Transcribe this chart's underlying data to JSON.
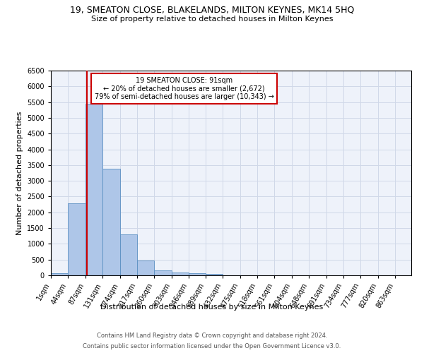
{
  "title_line1": "19, SMEATON CLOSE, BLAKELANDS, MILTON KEYNES, MK14 5HQ",
  "title_line2": "Size of property relative to detached houses in Milton Keynes",
  "xlabel": "Distribution of detached houses by size in Milton Keynes",
  "ylabel": "Number of detached properties",
  "footer_line1": "Contains HM Land Registry data © Crown copyright and database right 2024.",
  "footer_line2": "Contains public sector information licensed under the Open Government Licence v3.0.",
  "annotation_title": "19 SMEATON CLOSE: 91sqm",
  "annotation_line1": "← 20% of detached houses are smaller (2,672)",
  "annotation_line2": "79% of semi-detached houses are larger (10,343) →",
  "property_line_x": 91,
  "categories": [
    "1sqm",
    "44sqm",
    "87sqm",
    "131sqm",
    "174sqm",
    "217sqm",
    "260sqm",
    "303sqm",
    "346sqm",
    "389sqm",
    "432sqm",
    "475sqm",
    "518sqm",
    "561sqm",
    "604sqm",
    "648sqm",
    "691sqm",
    "734sqm",
    "777sqm",
    "820sqm",
    "863sqm"
  ],
  "bin_edges": [
    1,
    44,
    87,
    131,
    174,
    217,
    260,
    303,
    346,
    389,
    432,
    475,
    518,
    561,
    604,
    648,
    691,
    734,
    777,
    820,
    863
  ],
  "bin_width": 43,
  "values": [
    75,
    2280,
    5450,
    3380,
    1300,
    475,
    160,
    90,
    60,
    40,
    0,
    0,
    0,
    0,
    0,
    0,
    0,
    0,
    0,
    0,
    0
  ],
  "bar_color": "#aec6e8",
  "bar_edge_color": "#5a8fc2",
  "grid_color": "#d0d8e8",
  "property_line_color": "#cc0000",
  "annotation_box_color": "#cc0000",
  "background_color": "#eef2fa",
  "ylim": [
    0,
    6500
  ],
  "yticks": [
    0,
    500,
    1000,
    1500,
    2000,
    2500,
    3000,
    3500,
    4000,
    4500,
    5000,
    5500,
    6000,
    6500
  ],
  "title_fontsize": 9,
  "subtitle_fontsize": 8,
  "ylabel_fontsize": 8,
  "xlabel_fontsize": 8,
  "tick_fontsize": 7,
  "annotation_fontsize": 7,
  "footer_fontsize": 6
}
